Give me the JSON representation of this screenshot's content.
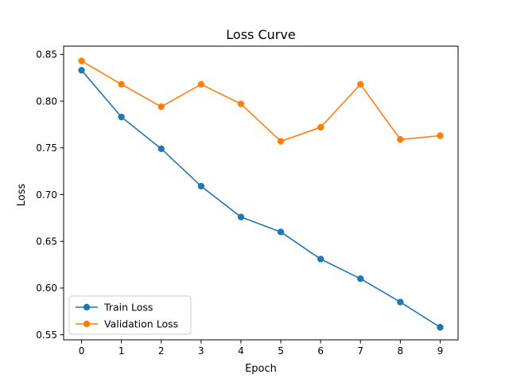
{
  "chart_data": {
    "type": "line",
    "title": "Loss Curve",
    "xlabel": "Epoch",
    "ylabel": "Loss",
    "x": [
      0,
      1,
      2,
      3,
      4,
      5,
      6,
      7,
      8,
      9
    ],
    "xticks": [
      "0",
      "1",
      "2",
      "3",
      "4",
      "5",
      "6",
      "7",
      "8",
      "9"
    ],
    "yticks": [
      "0.55",
      "0.60",
      "0.65",
      "0.70",
      "0.75",
      "0.80",
      "0.85"
    ],
    "xlim": [
      -0.45,
      9.45
    ],
    "ylim": [
      0.5446,
      0.8588
    ],
    "grid": false,
    "legend_position": "lower-left",
    "series": [
      {
        "name": "Train Loss",
        "color": "#1f77b4",
        "values": [
          0.833,
          0.783,
          0.749,
          0.709,
          0.676,
          0.66,
          0.631,
          0.61,
          0.585,
          0.558
        ]
      },
      {
        "name": "Validation Loss",
        "color": "#ff7f0e",
        "values": [
          0.843,
          0.818,
          0.794,
          0.818,
          0.797,
          0.757,
          0.772,
          0.818,
          0.759,
          0.763
        ]
      }
    ]
  }
}
